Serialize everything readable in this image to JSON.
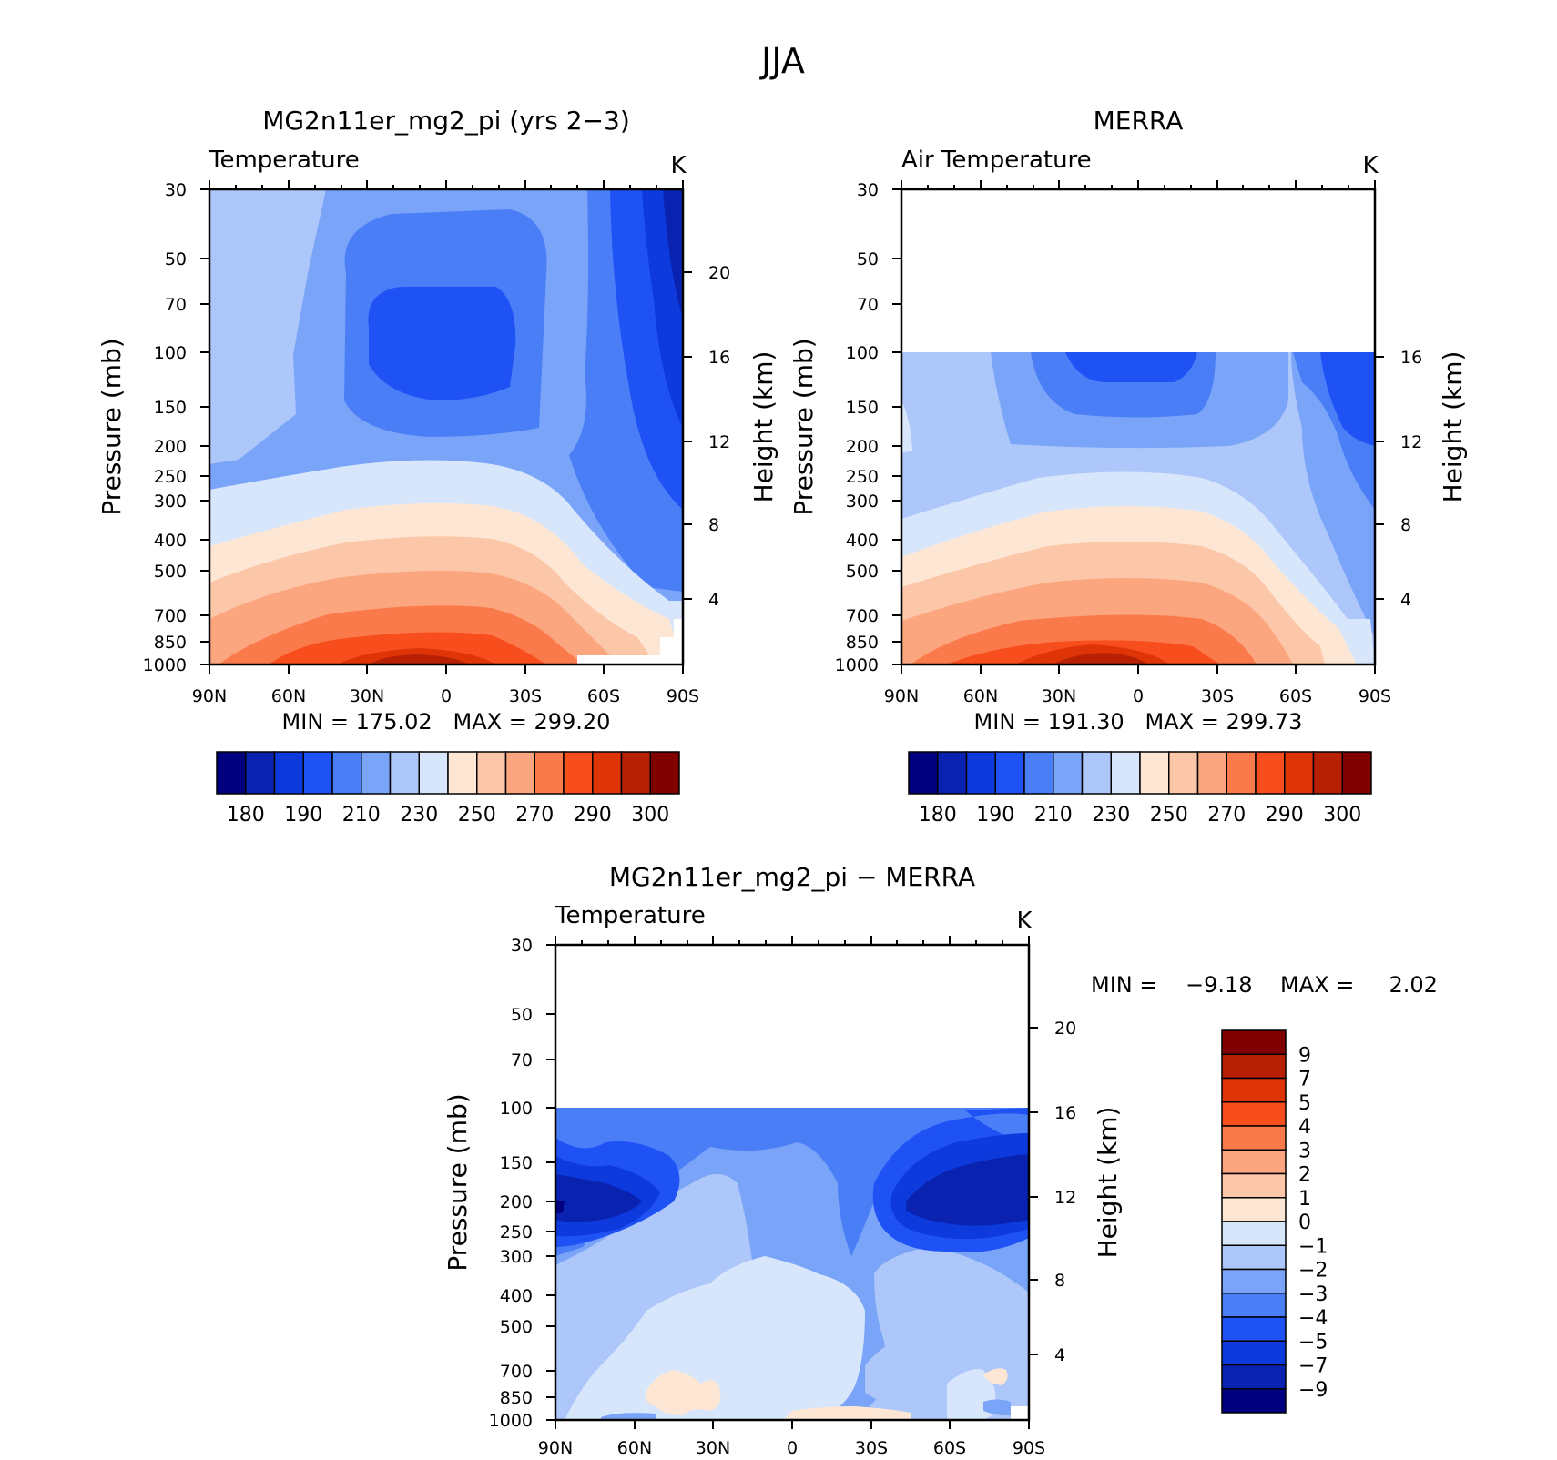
{
  "chart_data": {
    "type": "heatmap",
    "title": "JJA",
    "x_ticks": [
      "90N",
      "60N",
      "30N",
      "0",
      "30S",
      "60S",
      "90S"
    ],
    "y_ticks": [
      "30",
      "50",
      "70",
      "100",
      "150",
      "200",
      "250",
      "300",
      "400",
      "500",
      "700",
      "850",
      "1000"
    ],
    "ylabel": "Pressure (mb)",
    "y2label": "Height (km)",
    "units": "K",
    "panels": [
      {
        "id": "model",
        "title": "MG2n11er_mg2_pi (yrs 2−3)",
        "subtitle": "Temperature",
        "units": "K",
        "height_ticks": [
          "20",
          "16",
          "12",
          "8",
          "4"
        ],
        "stats": "MIN = 175.02   MAX = 299.20",
        "min": 175.02,
        "max": 299.2,
        "data_top_mb": 30
      },
      {
        "id": "obs",
        "title": "MERRA",
        "subtitle": "Air Temperature",
        "units": "K",
        "height_ticks": [
          "16",
          "12",
          "8",
          "4"
        ],
        "stats": "MIN = 191.30   MAX = 299.73",
        "min": 191.3,
        "max": 299.73,
        "data_top_mb": 100
      },
      {
        "id": "diff",
        "title": "MG2n11er_mg2_pi − MERRA",
        "subtitle": "Temperature",
        "units": "K",
        "height_ticks": [
          "20",
          "16",
          "12",
          "8",
          "4"
        ],
        "stats": "MIN =    −9.18    MAX =     2.02",
        "min": -9.18,
        "max": 2.02,
        "data_top_mb": 100
      }
    ],
    "colorbar_temperature": {
      "labels": [
        "180",
        "190",
        "210",
        "230",
        "250",
        "270",
        "290",
        "300"
      ],
      "colors": [
        "#00007f",
        "#0a22b0",
        "#0d3adc",
        "#1f52f5",
        "#4a7ef7",
        "#7aa4f8",
        "#adc7fa",
        "#d8e6fb",
        "#fde7d4",
        "#fcc6a8",
        "#fba67f",
        "#fb7a4c",
        "#f84e1e",
        "#de3407",
        "#b82004",
        "#800000"
      ]
    },
    "colorbar_difference": {
      "labels": [
        "9",
        "7",
        "5",
        "4",
        "3",
        "2",
        "1",
        "0",
        "−1",
        "−2",
        "−3",
        "−4",
        "−5",
        "−7",
        "−9"
      ],
      "colors": [
        "#800000",
        "#b82004",
        "#de3407",
        "#f84e1e",
        "#fb7a4c",
        "#fba67f",
        "#fcc6a8",
        "#fde7d4",
        "#d8e6fb",
        "#adc7fa",
        "#7aa4f8",
        "#4a7ef7",
        "#1f52f5",
        "#0d3adc",
        "#0a22b0",
        "#00007f"
      ]
    }
  }
}
